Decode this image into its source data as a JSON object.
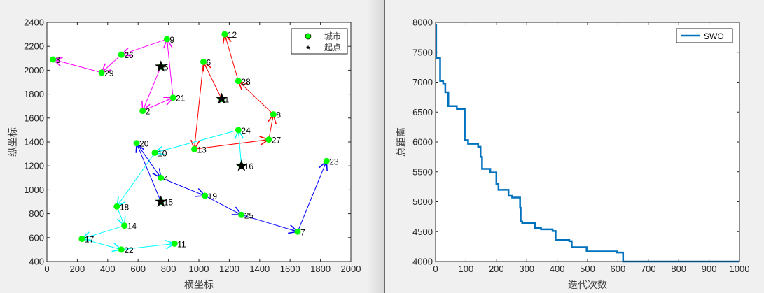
{
  "chart_data": [
    {
      "type": "scatter",
      "xlabel": "横坐标",
      "ylabel": "纵坐标",
      "xlim": [
        0,
        2000
      ],
      "ylim": [
        400,
        2400
      ],
      "xticks": [
        0,
        200,
        400,
        600,
        800,
        1000,
        1200,
        1400,
        1600,
        1800,
        2000
      ],
      "yticks": [
        400,
        600,
        800,
        1000,
        1200,
        1400,
        1600,
        1800,
        2000,
        2200,
        2400
      ],
      "grid": false,
      "legend": {
        "placement": "top-right",
        "entries": [
          {
            "label": "城市",
            "marker": "circle",
            "color": "#00ff00"
          },
          {
            "label": "起点",
            "marker": "star",
            "color": "#000000"
          }
        ]
      },
      "cities": [
        {
          "id": "1",
          "x": 1150,
          "y": 1760
        },
        {
          "id": "2",
          "x": 630,
          "y": 1660
        },
        {
          "id": "3",
          "x": 40,
          "y": 2090
        },
        {
          "id": "4",
          "x": 750,
          "y": 1100
        },
        {
          "id": "5",
          "x": 750,
          "y": 2030
        },
        {
          "id": "6",
          "x": 1030,
          "y": 2070
        },
        {
          "id": "7",
          "x": 1650,
          "y": 650
        },
        {
          "id": "8",
          "x": 1490,
          "y": 1630
        },
        {
          "id": "9",
          "x": 790,
          "y": 2260
        },
        {
          "id": "10",
          "x": 710,
          "y": 1310
        },
        {
          "id": "11",
          "x": 840,
          "y": 550
        },
        {
          "id": "12",
          "x": 1170,
          "y": 2300
        },
        {
          "id": "13",
          "x": 970,
          "y": 1340
        },
        {
          "id": "14",
          "x": 510,
          "y": 700
        },
        {
          "id": "15",
          "x": 750,
          "y": 900
        },
        {
          "id": "16",
          "x": 1280,
          "y": 1200
        },
        {
          "id": "17",
          "x": 230,
          "y": 590
        },
        {
          "id": "18",
          "x": 460,
          "y": 860
        },
        {
          "id": "19",
          "x": 1040,
          "y": 950
        },
        {
          "id": "20",
          "x": 590,
          "y": 1390
        },
        {
          "id": "21",
          "x": 830,
          "y": 1770
        },
        {
          "id": "22",
          "x": 490,
          "y": 500
        },
        {
          "id": "23",
          "x": 1840,
          "y": 1240
        },
        {
          "id": "24",
          "x": 1260,
          "y": 1500
        },
        {
          "id": "25",
          "x": 1280,
          "y": 790
        },
        {
          "id": "26",
          "x": 490,
          "y": 2130
        },
        {
          "id": "27",
          "x": 1460,
          "y": 1420
        },
        {
          "id": "28",
          "x": 1260,
          "y": 1910
        },
        {
          "id": "29",
          "x": 360,
          "y": 1980
        }
      ],
      "starts": [
        "1",
        "5",
        "15",
        "16"
      ],
      "routes": [
        {
          "color": "#ff0000",
          "path": [
            "1",
            "6",
            "13",
            "27",
            "8",
            "28",
            "12"
          ]
        },
        {
          "color": "#ff00ff",
          "path": [
            "5",
            "2",
            "21",
            "9",
            "26",
            "29",
            "3"
          ]
        },
        {
          "color": "#00ffff",
          "path": [
            "16",
            "24",
            "10",
            "18",
            "14",
            "17",
            "22",
            "11"
          ]
        },
        {
          "color": "#0000ff",
          "path": [
            "15",
            "20",
            "4",
            "19",
            "25",
            "7",
            "23"
          ]
        }
      ]
    },
    {
      "type": "line",
      "xlabel": "迭代次数",
      "ylabel": "总距离",
      "xlim": [
        0,
        1000
      ],
      "ylim": [
        4000,
        8000
      ],
      "xticks": [
        0,
        100,
        200,
        300,
        400,
        500,
        600,
        700,
        800,
        900,
        1000
      ],
      "yticks": [
        4000,
        4500,
        5000,
        5500,
        6000,
        6500,
        7000,
        7500,
        8000
      ],
      "grid": false,
      "legend": {
        "placement": "top-right"
      },
      "series": [
        {
          "name": "SWO",
          "color": "#0072bd",
          "x": [
            0,
            2,
            15,
            25,
            32,
            42,
            70,
            96,
            107,
            140,
            148,
            153,
            180,
            200,
            207,
            240,
            252,
            278,
            280,
            285,
            327,
            347,
            385,
            395,
            440,
            448,
            497,
            597,
            617,
            1000
          ],
          "y": [
            7950,
            7400,
            7020,
            6980,
            6830,
            6600,
            6550,
            6030,
            5970,
            5920,
            5750,
            5550,
            5490,
            5300,
            5200,
            5100,
            5070,
            4900,
            4670,
            4640,
            4560,
            4540,
            4510,
            4360,
            4340,
            4240,
            4170,
            4150,
            4000,
            4000
          ]
        }
      ]
    }
  ]
}
